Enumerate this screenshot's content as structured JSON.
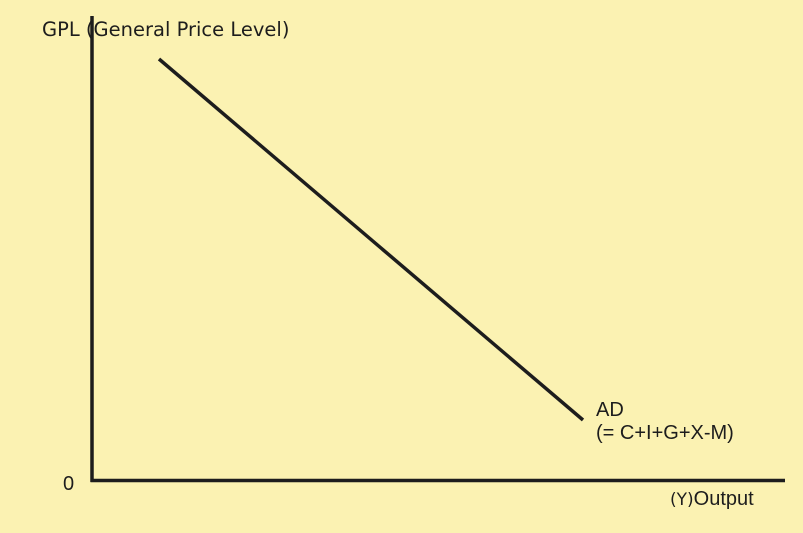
{
  "diagram": {
    "y_axis_label": "GPL (General Price Level)",
    "origin_label": "0",
    "x_axis_symbol": "(Y)",
    "x_axis_label": "Output",
    "curve_name": "AD",
    "curve_equation": "(= C+I+G+X-M)",
    "colors": {
      "background": "#FBF2B2",
      "ink": "#1d1d1d"
    }
  }
}
